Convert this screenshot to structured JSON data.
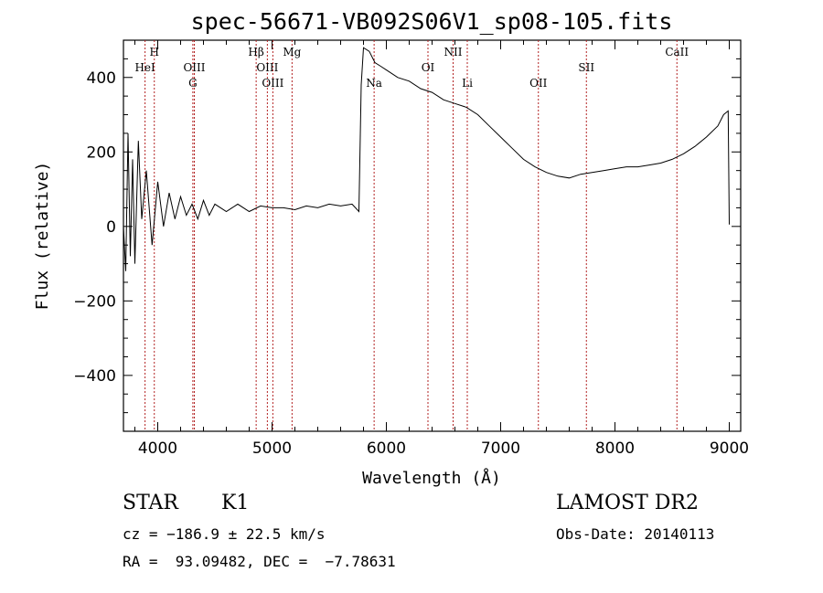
{
  "chart_data": {
    "type": "line",
    "title": "spec-56671-VB092S06V1_sp08-105.fits",
    "xlabel": "Wavelength (Å)",
    "ylabel": "Flux (relative)",
    "xlim": [
      3700,
      9100
    ],
    "ylim": [
      -550,
      500
    ],
    "x_ticks": [
      4000,
      5000,
      6000,
      7000,
      8000,
      9000
    ],
    "y_ticks": [
      -400,
      -200,
      0,
      200,
      400
    ],
    "x_tick_labels": [
      "4000",
      "5000",
      "6000",
      "7000",
      "8000",
      "9000"
    ],
    "y_tick_labels": [
      "−400",
      "−200",
      "0",
      "200",
      "400"
    ],
    "grid": false,
    "legend": "none",
    "line_color": "#000000",
    "marker_color": "#b22222",
    "series": [
      {
        "x": [
          3700,
          3720,
          3740,
          3760,
          3780,
          3800,
          3830,
          3860,
          3900,
          3950,
          4000,
          4050,
          4100,
          4150,
          4200,
          4250,
          4300,
          4350,
          4400,
          4450,
          4500,
          4600,
          4700,
          4800,
          4900,
          5000,
          5100,
          5200,
          5300,
          5400,
          5500,
          5600,
          5700,
          5760,
          5780,
          5800,
          5850,
          5900,
          5950,
          6000,
          6100,
          6200,
          6300,
          6400,
          6500,
          6600,
          6700,
          6800,
          6900,
          7000,
          7100,
          7200,
          7300,
          7400,
          7500,
          7600,
          7700,
          7800,
          7900,
          8000,
          8100,
          8200,
          8300,
          8400,
          8500,
          8600,
          8700,
          8800,
          8900,
          8950,
          8990,
          9000
        ],
        "y": [
          0,
          -120,
          250,
          -80,
          180,
          -100,
          230,
          20,
          150,
          -50,
          120,
          0,
          90,
          20,
          80,
          30,
          60,
          20,
          70,
          30,
          60,
          40,
          60,
          40,
          55,
          50,
          50,
          45,
          55,
          50,
          60,
          55,
          60,
          40,
          380,
          480,
          470,
          440,
          430,
          420,
          400,
          390,
          370,
          360,
          340,
          330,
          320,
          300,
          270,
          240,
          210,
          180,
          160,
          145,
          135,
          130,
          140,
          145,
          150,
          155,
          160,
          160,
          165,
          170,
          180,
          195,
          215,
          240,
          270,
          300,
          310,
          5
        ]
      }
    ],
    "annotations": [
      {
        "label": "HeI",
        "x": 3889,
        "row": 2
      },
      {
        "label": "H",
        "x": 3970,
        "row": 1
      },
      {
        "label": "OIII",
        "x": 4320,
        "row": 2
      },
      {
        "label": "G",
        "x": 4307,
        "row": 3
      },
      {
        "label": "Hβ",
        "x": 4861,
        "row": 1
      },
      {
        "label": "OIII",
        "x": 4959,
        "row": 2
      },
      {
        "label": "OIII",
        "x": 5007,
        "row": 3
      },
      {
        "label": "Mg",
        "x": 5175,
        "row": 1
      },
      {
        "label": "Na",
        "x": 5893,
        "row": 3
      },
      {
        "label": "OI",
        "x": 6364,
        "row": 2
      },
      {
        "label": "NII",
        "x": 6584,
        "row": 1
      },
      {
        "label": "Li",
        "x": 6708,
        "row": 3
      },
      {
        "label": "OII",
        "x": 7330,
        "row": 3
      },
      {
        "label": "SII",
        "x": 7750,
        "row": 2
      },
      {
        "label": "CaII",
        "x": 8542,
        "row": 1
      }
    ]
  },
  "info": {
    "class_label": "STAR",
    "subclass_label": "K1",
    "survey": "LAMOST DR2",
    "cz": "cz = −186.9 ± 22.5 km/s",
    "obs_date": "Obs-Date: 20140113",
    "radec": "RA =  93.09482, DEC =  −7.78631"
  }
}
